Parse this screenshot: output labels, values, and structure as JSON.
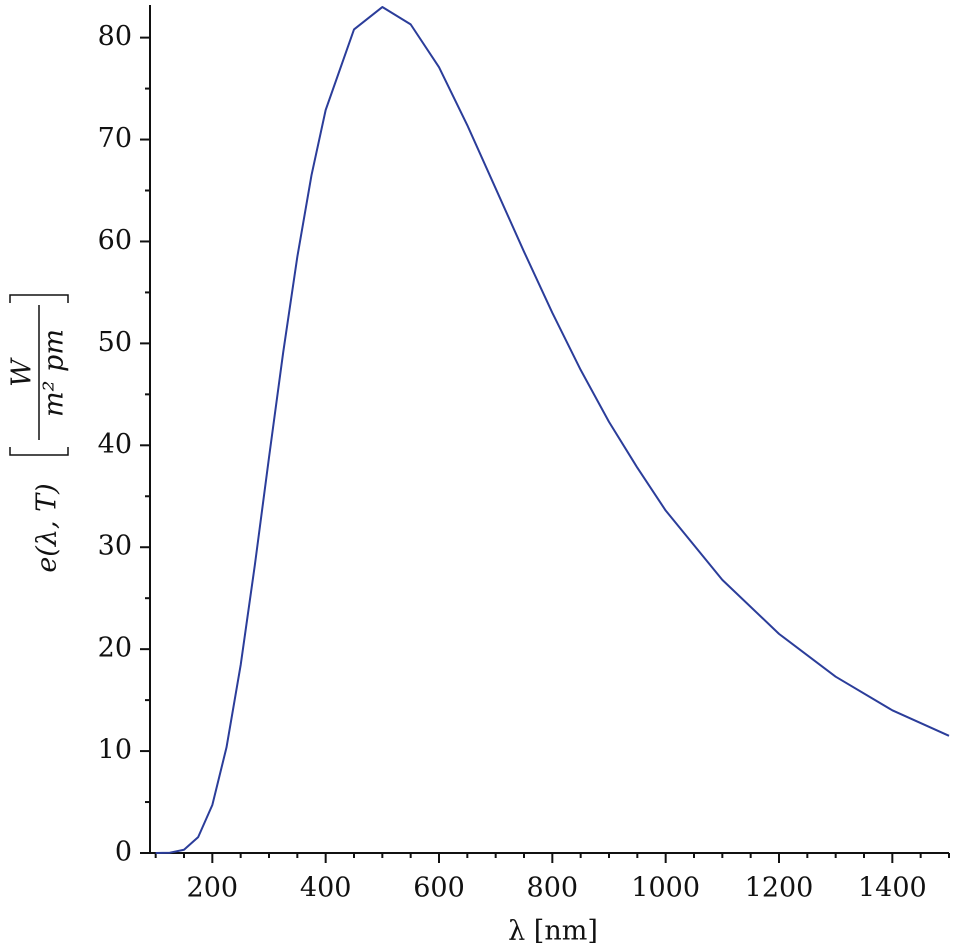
{
  "chart_data": {
    "type": "line",
    "xlabel": "λ [nm]",
    "ylabel": "e(λ, T)",
    "ylabel_unit_numerator": "W",
    "ylabel_unit_denominator": "m² pm",
    "x": [
      100,
      125,
      150,
      175,
      200,
      225,
      250,
      275,
      300,
      325,
      350,
      375,
      400,
      450,
      500,
      550,
      600,
      650,
      700,
      750,
      800,
      850,
      900,
      950,
      1000,
      1100,
      1200,
      1300,
      1400,
      1500
    ],
    "series": [
      {
        "color": "#2b3d9a",
        "values": [
          0.0,
          0.03,
          0.32,
          1.56,
          4.71,
          10.36,
          18.44,
          28.24,
          38.8,
          49.1,
          58.5,
          66.5,
          72.9,
          80.8,
          83.0,
          81.3,
          77.1,
          71.4,
          65.2,
          59.0,
          53.0,
          47.4,
          42.3,
          37.8,
          33.6,
          26.8,
          21.5,
          17.3,
          14.0,
          11.5
        ]
      }
    ],
    "xlim": [
      90,
      1500
    ],
    "ylim": [
      0,
      83.2
    ],
    "xticks": [
      200,
      400,
      600,
      800,
      1000,
      1200,
      1400
    ],
    "yticks": [
      0,
      10,
      20,
      30,
      40,
      50,
      60,
      70,
      80
    ],
    "xminorticks": [
      100,
      150,
      250,
      300,
      350,
      450,
      500,
      550,
      650,
      700,
      750,
      850,
      900,
      950,
      1050,
      1100,
      1150,
      1250,
      1300,
      1350,
      1450,
      1500
    ],
    "yminorticks": [
      5,
      15,
      25,
      35,
      45,
      55,
      65,
      75
    ]
  }
}
